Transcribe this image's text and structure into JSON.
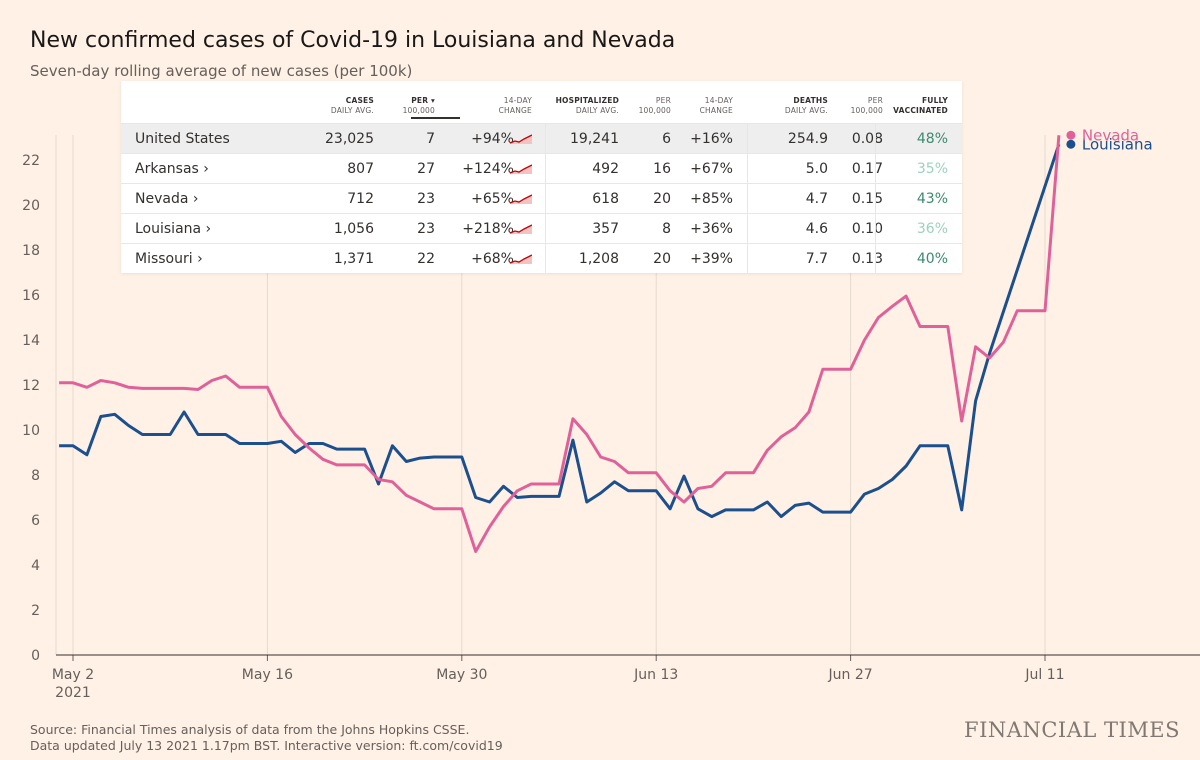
{
  "title": "New confirmed cases of Covid-19 in Louisiana and Nevada",
  "subtitle": "Seven-day rolling average of new cases (per 100k)",
  "source_line1": "Source: Financial Times analysis of data from the Johns Hopkins CSSE.",
  "source_line2": "Data updated July 13 2021 1.17pm BST. Interactive version: ft.com/covid19",
  "brand": "FINANCIAL TIMES",
  "colors": {
    "nevada": "#e0619a",
    "louisiana": "#1c4f8e",
    "background": "#fff1e5",
    "vaccinated_high": "#3d8a6e",
    "vaccinated_low": "#9cd1c0"
  },
  "table": {
    "headers": [
      {
        "l1": "CASES",
        "l2": "DAILY AVG."
      },
      {
        "l1": "PER ▾",
        "l2": "100,000"
      },
      {
        "l1": "14-DAY",
        "l2": "CHANGE"
      },
      {
        "l1": "HOSPITALIZED",
        "l2": "DAILY AVG."
      },
      {
        "l1": "PER",
        "l2": "100,000"
      },
      {
        "l1": "14-DAY",
        "l2": "CHANGE"
      },
      {
        "l1": "DEATHS",
        "l2": "DAILY AVG."
      },
      {
        "l1": "PER",
        "l2": "100,000"
      },
      {
        "l1": "FULLY",
        "l2": "VACCINATED"
      }
    ],
    "rows": [
      {
        "name": "United States",
        "cases": "23,025",
        "per": "7",
        "change": "+94%",
        "hosp": "19,241",
        "hper": "6",
        "hchange": "+16%",
        "deaths": "254.9",
        "dper": "0.08",
        "vax": "48%",
        "vax_level": "high"
      },
      {
        "name": "Arkansas ›",
        "cases": "807",
        "per": "27",
        "change": "+124%",
        "hosp": "492",
        "hper": "16",
        "hchange": "+67%",
        "deaths": "5.0",
        "dper": "0.17",
        "vax": "35%",
        "vax_level": "low"
      },
      {
        "name": "Nevada ›",
        "cases": "712",
        "per": "23",
        "change": "+65%",
        "hosp": "618",
        "hper": "20",
        "hchange": "+85%",
        "deaths": "4.7",
        "dper": "0.15",
        "vax": "43%",
        "vax_level": "high"
      },
      {
        "name": "Louisiana ›",
        "cases": "1,056",
        "per": "23",
        "change": "+218%",
        "hosp": "357",
        "hper": "8",
        "hchange": "+36%",
        "deaths": "4.6",
        "dper": "0.10",
        "vax": "36%",
        "vax_level": "low"
      },
      {
        "name": "Missouri ›",
        "cases": "1,371",
        "per": "22",
        "change": "+68%",
        "hosp": "1,208",
        "hper": "20",
        "hchange": "+39%",
        "deaths": "7.7",
        "dper": "0.13",
        "vax": "40%",
        "vax_level": "high"
      }
    ]
  },
  "chart_data": {
    "type": "line",
    "title": "New confirmed cases of Covid-19 in Louisiana and Nevada",
    "ylabel": "Seven-day rolling average of new cases (per 100k)",
    "ylim": [
      0,
      23
    ],
    "yticks": [
      0,
      2,
      4,
      6,
      8,
      10,
      12,
      14,
      16,
      18,
      20,
      22
    ],
    "xticks": [
      {
        "day": 0,
        "label": "May 2",
        "sub": "2021"
      },
      {
        "day": 14,
        "label": "May 16",
        "sub": ""
      },
      {
        "day": 28,
        "label": "May 30",
        "sub": ""
      },
      {
        "day": 42,
        "label": "Jun 13",
        "sub": ""
      },
      {
        "day": 56,
        "label": "Jun 27",
        "sub": ""
      },
      {
        "day": 70,
        "label": "Jul 11",
        "sub": ""
      }
    ],
    "x_unit": "days since May 1 2021 (0 = May 2)",
    "series": [
      {
        "name": "Nevada",
        "color": "#e0619a",
        "x": [
          -1,
          0,
          1,
          2,
          3,
          4,
          5,
          6,
          7,
          8,
          9,
          10,
          11,
          12,
          13,
          14,
          15,
          16,
          17,
          18,
          19,
          20,
          21,
          22,
          23,
          24,
          25,
          26,
          27,
          28,
          29,
          30,
          31,
          32,
          33,
          34,
          35,
          36,
          37,
          38,
          39,
          40,
          41,
          42,
          43,
          44,
          45,
          46,
          47,
          48,
          49,
          50,
          51,
          52,
          53,
          54,
          55,
          56,
          57,
          58,
          59,
          60,
          61,
          62,
          63,
          64,
          65,
          66,
          67,
          68,
          69,
          70,
          71
        ],
        "values": [
          12.1,
          12.1,
          11.9,
          12.2,
          12.1,
          11.9,
          11.85,
          11.85,
          11.85,
          11.85,
          11.8,
          12.2,
          12.4,
          11.9,
          11.9,
          11.9,
          10.6,
          9.8,
          9.2,
          8.7,
          8.45,
          8.45,
          8.45,
          7.8,
          7.7,
          7.1,
          6.8,
          6.5,
          6.5,
          6.5,
          4.6,
          5.7,
          6.6,
          7.3,
          7.6,
          7.6,
          7.6,
          10.5,
          9.8,
          8.8,
          8.6,
          8.1,
          8.1,
          8.1,
          7.3,
          6.8,
          7.4,
          7.5,
          8.1,
          8.1,
          8.1,
          9.1,
          9.7,
          10.1,
          10.8,
          12.7,
          12.7,
          12.7,
          14.0,
          15.0,
          15.5,
          15.95,
          14.6,
          14.6,
          14.6,
          10.4,
          13.7,
          13.2,
          13.9,
          15.3,
          15.3,
          15.3,
          23.1
        ]
      },
      {
        "name": "Louisiana",
        "color": "#1c4f8e",
        "x": [
          -1,
          0,
          1,
          2,
          3,
          4,
          5,
          6,
          7,
          8,
          9,
          10,
          11,
          12,
          13,
          14,
          15,
          16,
          17,
          18,
          19,
          20,
          21,
          22,
          23,
          24,
          25,
          26,
          27,
          28,
          29,
          30,
          31,
          32,
          33,
          34,
          35,
          36,
          37,
          38,
          39,
          40,
          41,
          42,
          43,
          44,
          45,
          46,
          47,
          48,
          49,
          50,
          51,
          52,
          53,
          54,
          55,
          56,
          57,
          58,
          59,
          60,
          61,
          62,
          63,
          64,
          65,
          66,
          67,
          68,
          69,
          70,
          71
        ],
        "values": [
          9.3,
          9.3,
          8.9,
          10.6,
          10.7,
          10.2,
          9.8,
          9.8,
          9.8,
          10.8,
          9.8,
          9.8,
          9.8,
          9.4,
          9.4,
          9.4,
          9.5,
          9.0,
          9.4,
          9.4,
          9.15,
          9.15,
          9.15,
          7.6,
          9.3,
          8.6,
          8.75,
          8.8,
          8.8,
          8.8,
          7.0,
          6.8,
          7.5,
          7.0,
          7.05,
          7.05,
          7.05,
          9.55,
          6.8,
          7.2,
          7.7,
          7.3,
          7.3,
          7.3,
          6.5,
          7.95,
          6.5,
          6.15,
          6.45,
          6.45,
          6.45,
          6.8,
          6.15,
          6.65,
          6.75,
          6.35,
          6.35,
          6.35,
          7.15,
          7.4,
          7.8,
          8.4,
          9.3,
          9.3,
          9.3,
          6.45,
          11.3,
          13.4,
          null,
          null,
          null,
          null,
          22.7
        ]
      }
    ],
    "grid": "vertical lines at x ticks and horizontal baseline",
    "legend": "labels at right end of lines"
  }
}
